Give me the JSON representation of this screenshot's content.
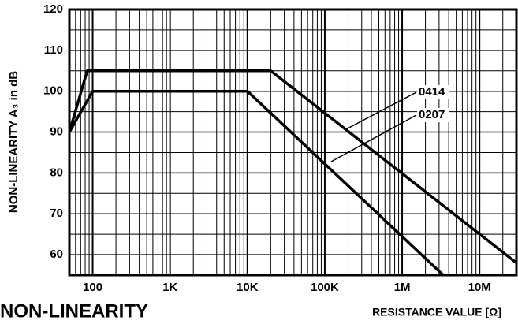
{
  "chart_data": {
    "type": "line",
    "title": "NON-LINEARITY",
    "xlabel": "RESISTANCE VALUE [Ω]",
    "ylabel": "NON-LINEARITY A₃ in dB",
    "xscale": "log",
    "xlim": [
      50,
      30000000
    ],
    "xticks": [
      100,
      {
        "value": 1000,
        "label": "1K"
      },
      {
        "value": 10000,
        "label": "10K"
      },
      {
        "value": 100000,
        "label": "100K"
      },
      {
        "value": 1000000,
        "label": "1M"
      },
      {
        "value": 10000000,
        "label": "10M"
      }
    ],
    "ylim": [
      55,
      120
    ],
    "yticks": [
      60,
      70,
      80,
      90,
      100,
      110,
      120
    ],
    "grid": true,
    "minor_grid": true,
    "series": [
      {
        "name": "0414",
        "color": "#000000",
        "x": [
          50,
          85,
          20000,
          30000000
        ],
        "values": [
          90,
          105,
          105,
          58
        ]
      },
      {
        "name": "0207",
        "color": "#000000",
        "x": [
          50,
          100,
          10000,
          3400000
        ],
        "values": [
          90,
          100,
          100,
          55
        ]
      }
    ]
  }
}
